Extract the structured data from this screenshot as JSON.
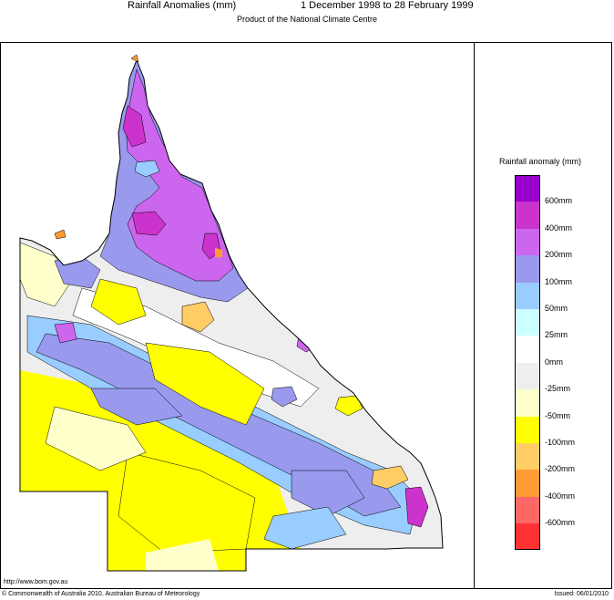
{
  "title": {
    "main": "Rainfall Anomalies (mm)",
    "period": "1 December 1998 to 28 February 1999"
  },
  "subtitle": "Product of the National Climate Centre",
  "legend": {
    "title": "Rainfall anomaly (mm)",
    "colors": [
      "#9900cc",
      "#cc33cc",
      "#cc66ee",
      "#9999ee",
      "#99ccff",
      "#ccffff",
      "#ffffff",
      "#eeeeee",
      "#ffffcc",
      "#ffff00",
      "#ffcc66",
      "#ff9933",
      "#ff6666",
      "#ff3333"
    ],
    "labels": [
      "600mm",
      "400mm",
      "200mm",
      "100mm",
      "50mm",
      "25mm",
      "0mm",
      "-25mm",
      "-50mm",
      "-100mm",
      "-200mm",
      "-400mm",
      "-600mm"
    ]
  },
  "footer": {
    "url": "http://www.bom.gov.au",
    "copyright": "© Commonwealth of Australia 2010, Australian Bureau of Meteorology",
    "issued": "Issued: 06/01/2010"
  }
}
